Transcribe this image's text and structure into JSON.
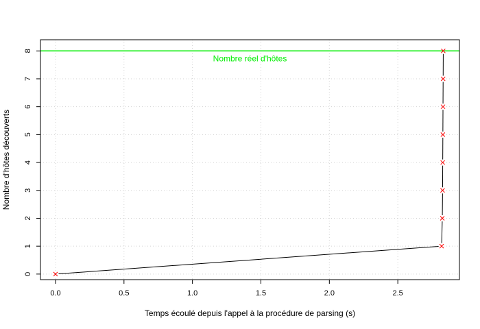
{
  "chart_data": {
    "type": "line",
    "xlabel": "Temps écoulé depuis l'appel à la procédure de parsing (s)",
    "ylabel": "Nombre d'hôtes découverts",
    "xlim": [
      -0.11,
      2.95
    ],
    "ylim": [
      -0.2,
      8.4
    ],
    "x_ticks": [
      0.0,
      0.5,
      1.0,
      1.5,
      2.0,
      2.5
    ],
    "x_tick_labels": [
      "0.0",
      "0.5",
      "1.0",
      "1.5",
      "2.0",
      "2.5"
    ],
    "y_ticks": [
      0,
      1,
      2,
      3,
      4,
      5,
      6,
      7,
      8
    ],
    "y_tick_labels": [
      "0",
      "1",
      "2",
      "3",
      "4",
      "5",
      "6",
      "7",
      "8"
    ],
    "grid": true,
    "series": [
      {
        "x": [
          0.0,
          2.82,
          2.825,
          2.827,
          2.828,
          2.829,
          2.83,
          2.831,
          2.832
        ],
        "y": [
          0,
          1,
          2,
          3,
          4,
          5,
          6,
          7,
          8
        ],
        "line_color": "#000000",
        "marker": "x",
        "marker_color": "#ff0000"
      }
    ],
    "reference_line": {
      "y": 8,
      "label": "Nombre réel d'hôtes",
      "color": "#00ee00"
    }
  }
}
